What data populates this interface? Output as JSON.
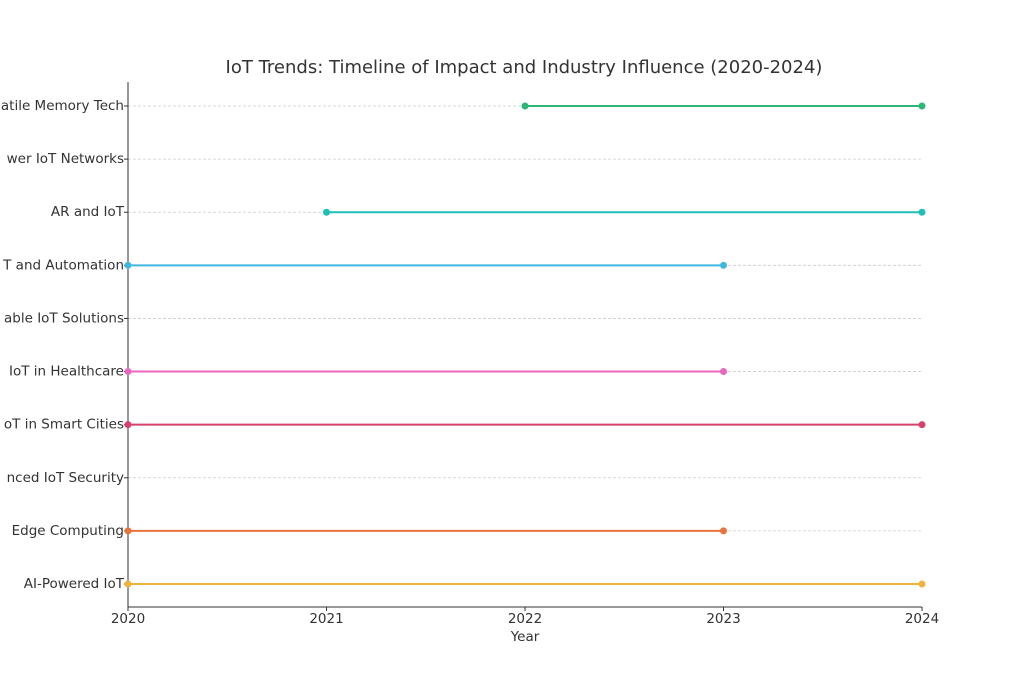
{
  "chart_data": {
    "type": "timeline",
    "title": "IoT Trends: Timeline of Impact and Industry Influence (2020-2024)",
    "xlabel": "Year",
    "categories": [
      "AI-Powered IoT",
      "Edge Computing",
      "nced IoT Security",
      "oT in Smart Cities",
      "IoT in Healthcare",
      "able IoT Solutions",
      "T and Automation",
      "AR and IoT",
      "wer IoT Networks",
      "atile Memory Tech"
    ],
    "start": [
      2020,
      2020,
      null,
      2020,
      2020,
      null,
      2020,
      2021,
      null,
      2022
    ],
    "end": [
      2024,
      2023,
      null,
      2024,
      2023,
      null,
      2023,
      2024,
      null,
      2024
    ],
    "colors": [
      "#f0b43c",
      "#e8743b",
      null,
      "#d6406a",
      "#e868c0",
      null,
      "#3fb8e0",
      "#1fbfb8",
      null,
      "#2bb673"
    ],
    "xlim": [
      2020,
      2024
    ],
    "xticks": [
      2020,
      2021,
      2022,
      2023,
      2024
    ],
    "grid": true
  }
}
